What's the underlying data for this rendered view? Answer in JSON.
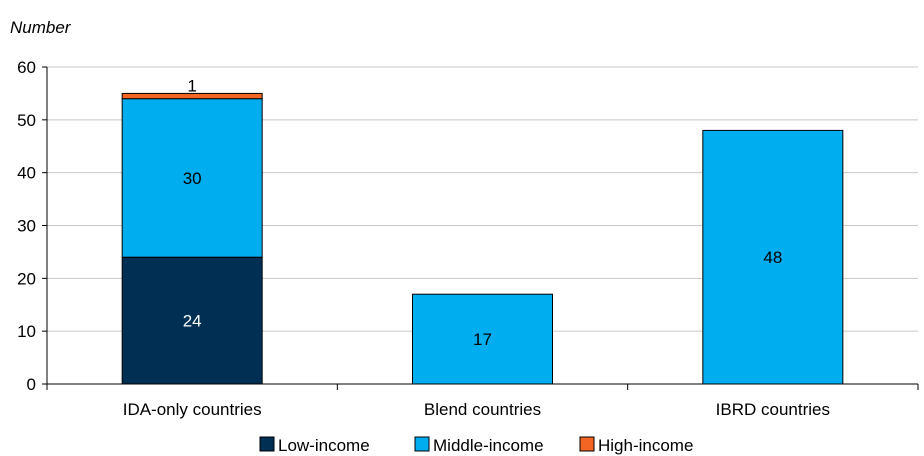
{
  "chart_data": {
    "type": "bar",
    "stacked": true,
    "ylabel": "Number",
    "xlabel": "",
    "ylim": [
      0,
      60
    ],
    "yticks": [
      0,
      10,
      20,
      30,
      40,
      50,
      60
    ],
    "grid": true,
    "legend_position": "bottom",
    "categories": [
      "IDA-only countries",
      "Blend countries",
      "IBRD countries"
    ],
    "series": [
      {
        "name": "Low-income",
        "color": "#002f54",
        "label_color": "#ffffff",
        "values": [
          24,
          0,
          0
        ]
      },
      {
        "name": "Middle-income",
        "color": "#00adef",
        "label_color": "#000000",
        "values": [
          30,
          17,
          48
        ]
      },
      {
        "name": "High-income",
        "color": "#f26522",
        "label_color": "#000000",
        "values": [
          1,
          0,
          0
        ]
      }
    ]
  }
}
